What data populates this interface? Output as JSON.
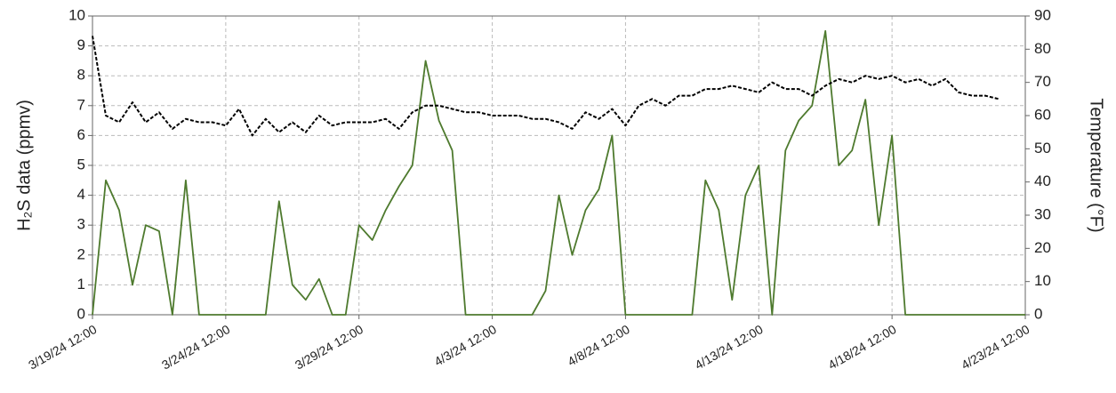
{
  "chart_data": {
    "type": "line",
    "ylabel": "H₂S data (ppmv)",
    "y2label": "Temperature (°F)",
    "x": [
      "2024-03-19T12:00",
      "2024-03-20T00:00",
      "2024-03-20T12:00",
      "2024-03-21T00:00",
      "2024-03-21T12:00",
      "2024-03-22T00:00",
      "2024-03-22T12:00",
      "2024-03-23T00:00",
      "2024-03-23T12:00",
      "2024-03-24T00:00",
      "2024-03-24T12:00",
      "2024-03-25T00:00",
      "2024-03-25T12:00",
      "2024-03-26T00:00",
      "2024-03-26T12:00",
      "2024-03-27T00:00",
      "2024-03-27T12:00",
      "2024-03-28T00:00",
      "2024-03-28T12:00",
      "2024-03-29T00:00",
      "2024-03-29T12:00",
      "2024-03-30T00:00",
      "2024-03-30T12:00",
      "2024-03-31T00:00",
      "2024-03-31T12:00",
      "2024-04-01T00:00",
      "2024-04-01T12:00",
      "2024-04-02T00:00",
      "2024-04-02T12:00",
      "2024-04-03T00:00",
      "2024-04-03T12:00",
      "2024-04-04T00:00",
      "2024-04-04T12:00",
      "2024-04-05T00:00",
      "2024-04-05T12:00",
      "2024-04-06T00:00",
      "2024-04-06T12:00",
      "2024-04-07T00:00",
      "2024-04-07T12:00",
      "2024-04-08T00:00",
      "2024-04-08T12:00",
      "2024-04-09T00:00",
      "2024-04-09T12:00",
      "2024-04-10T00:00",
      "2024-04-10T12:00",
      "2024-04-11T00:00",
      "2024-04-11T12:00",
      "2024-04-12T00:00",
      "2024-04-12T12:00",
      "2024-04-13T00:00",
      "2024-04-13T12:00",
      "2024-04-14T00:00",
      "2024-04-14T12:00",
      "2024-04-15T00:00",
      "2024-04-15T12:00",
      "2024-04-16T00:00",
      "2024-04-16T12:00",
      "2024-04-17T00:00",
      "2024-04-17T12:00",
      "2024-04-18T00:00",
      "2024-04-18T12:00",
      "2024-04-19T00:00",
      "2024-04-19T12:00",
      "2024-04-20T00:00",
      "2024-04-20T12:00",
      "2024-04-21T00:00",
      "2024-04-21T12:00",
      "2024-04-22T00:00",
      "2024-04-22T12:00",
      "2024-04-23T00:00",
      "2024-04-23T12:00"
    ],
    "series": [
      {
        "color": "#4e7a2e",
        "dashed": false,
        "values": [
          0,
          4.5,
          3.5,
          1,
          3,
          2.8,
          0,
          4.5,
          0,
          0,
          0,
          0,
          0,
          0,
          3.8,
          1,
          0.5,
          1.2,
          0,
          0,
          3,
          2.5,
          3.5,
          4.3,
          5,
          8.5,
          6.5,
          5.5,
          0,
          0,
          0,
          0,
          0,
          0,
          0.8,
          4,
          2,
          3.5,
          4.2,
          6,
          0,
          0,
          0,
          0,
          0,
          0,
          4.5,
          3.5,
          0.5,
          4,
          5,
          0,
          5.5,
          6.5,
          7,
          9.5,
          5,
          5.5,
          7.2,
          3,
          6,
          0,
          0,
          0,
          0,
          0,
          0,
          0,
          0,
          0,
          0
        ]
      },
      {
        "color": "#000000",
        "dashed": true,
        "axis": "y2",
        "values": [
          84,
          60,
          58,
          64,
          58,
          61,
          56,
          59,
          58,
          58,
          57,
          62,
          54,
          59,
          55,
          58,
          55,
          60,
          57,
          58,
          58,
          58,
          59,
          56,
          61,
          63,
          63,
          62,
          61,
          61,
          60,
          60,
          60,
          59,
          59,
          58,
          56,
          61,
          59,
          62,
          57,
          63,
          65,
          63,
          66,
          66,
          68,
          68,
          69,
          68,
          67,
          70,
          68,
          68,
          66,
          69,
          71,
          70,
          72,
          71,
          72,
          70,
          71,
          69,
          71,
          67,
          66,
          66,
          65,
          null,
          null
        ]
      }
    ],
    "xlim": [
      "2024-03-19T12:00",
      "2024-04-23T12:00"
    ],
    "xticks": [
      {
        "value": "2024-03-19T12:00",
        "label": "3/19/24 12:00"
      },
      {
        "value": "2024-03-24T12:00",
        "label": "3/24/24 12:00"
      },
      {
        "value": "2024-03-29T12:00",
        "label": "3/29/24 12:00"
      },
      {
        "value": "2024-04-03T12:00",
        "label": "4/3/24 12:00"
      },
      {
        "value": "2024-04-08T12:00",
        "label": "4/8/24 12:00"
      },
      {
        "value": "2024-04-13T12:00",
        "label": "4/13/24 12:00"
      },
      {
        "value": "2024-04-18T12:00",
        "label": "4/18/24 12:00"
      },
      {
        "value": "2024-04-23T12:00",
        "label": "4/23/24 12:00"
      }
    ],
    "ylim": [
      0,
      10
    ],
    "yticks": [
      0,
      1,
      2,
      3,
      4,
      5,
      6,
      7,
      8,
      9,
      10
    ],
    "y2lim": [
      0,
      90
    ],
    "y2ticks": [
      0,
      10,
      20,
      30,
      40,
      50,
      60,
      70,
      80,
      90
    ],
    "grid": true
  }
}
